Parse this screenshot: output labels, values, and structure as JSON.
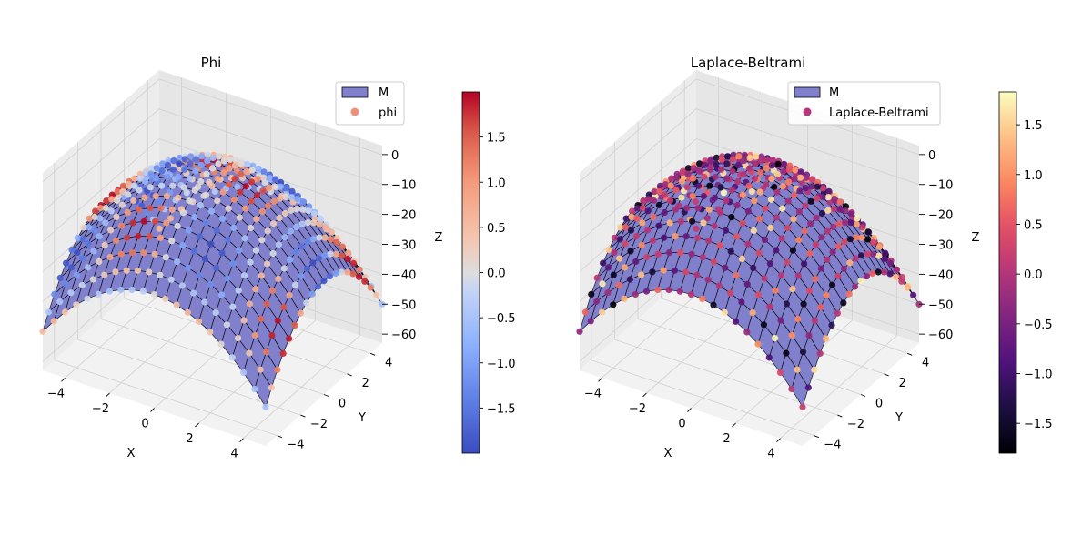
{
  "chart_data": [
    {
      "type": "scatter",
      "subtype": "3d-surface-with-scatter",
      "title": "Phi",
      "xlabel": "X",
      "ylabel": "Y",
      "zlabel": "Z",
      "xlim": [
        -5,
        5
      ],
      "ylim": [
        -5,
        5
      ],
      "zlim": [
        -63,
        3
      ],
      "x_ticks": [
        "−4",
        "−2",
        "0",
        "2",
        "4"
      ],
      "y_ticks": [
        "−4",
        "−2",
        "0",
        "2",
        "4"
      ],
      "z_ticks": [
        "0",
        "−10",
        "−20",
        "−30",
        "−40",
        "−50",
        "−60"
      ],
      "surface": {
        "formula": "z = -(x^2 + y^2)",
        "grid_points": 21,
        "range": [
          -5,
          5
        ],
        "face_color": "#8080cc",
        "edge_color": "#000000"
      },
      "point_field_formula": "phi = 2*sin(x)*cos(y)",
      "colormap": "coolwarm",
      "colorbar": {
        "min": -2.0,
        "max": 2.0,
        "ticks": [
          "−1.5",
          "−1.0",
          "−0.5",
          "0.0",
          "0.5",
          "1.0",
          "1.5"
        ],
        "tick_values": [
          -1.5,
          -1.0,
          -0.5,
          0.0,
          0.5,
          1.0,
          1.5
        ]
      },
      "legend": {
        "placement": "top-right",
        "entries": [
          {
            "label": "M",
            "kind": "patch",
            "color": "#8080cc"
          },
          {
            "label": "phi",
            "kind": "marker",
            "color": "#f0907a"
          }
        ]
      },
      "grid": true
    },
    {
      "type": "scatter",
      "subtype": "3d-surface-with-scatter",
      "title": "Laplace-Beltrami",
      "xlabel": "X",
      "ylabel": "Y",
      "zlabel": "Z",
      "xlim": [
        -5,
        5
      ],
      "ylim": [
        -5,
        5
      ],
      "zlim": [
        -63,
        3
      ],
      "x_ticks": [
        "−4",
        "−2",
        "0",
        "2",
        "4"
      ],
      "y_ticks": [
        "−4",
        "−2",
        "0",
        "2",
        "4"
      ],
      "z_ticks": [
        "0",
        "−10",
        "−20",
        "−30",
        "−40",
        "−50",
        "−60"
      ],
      "surface": {
        "formula": "z = -(x^2 + y^2)",
        "grid_points": 21,
        "range": [
          -5,
          5
        ],
        "face_color": "#8080cc",
        "edge_color": "#000000"
      },
      "point_field_formula": "laplace_beltrami(phi) on surface",
      "colormap": "magma",
      "colorbar": {
        "min": -1.8,
        "max": 1.83,
        "ticks": [
          "−1.5",
          "−1.0",
          "−0.5",
          "0.0",
          "0.5",
          "1.0",
          "1.5"
        ],
        "tick_values": [
          -1.5,
          -1.0,
          -0.5,
          0.0,
          0.5,
          1.0,
          1.5
        ]
      },
      "legend": {
        "placement": "top-right",
        "entries": [
          {
            "label": "M",
            "kind": "patch",
            "color": "#8080cc"
          },
          {
            "label": "Laplace-Beltrami",
            "kind": "marker",
            "color": "#b5367a"
          }
        ]
      },
      "grid": true
    }
  ]
}
